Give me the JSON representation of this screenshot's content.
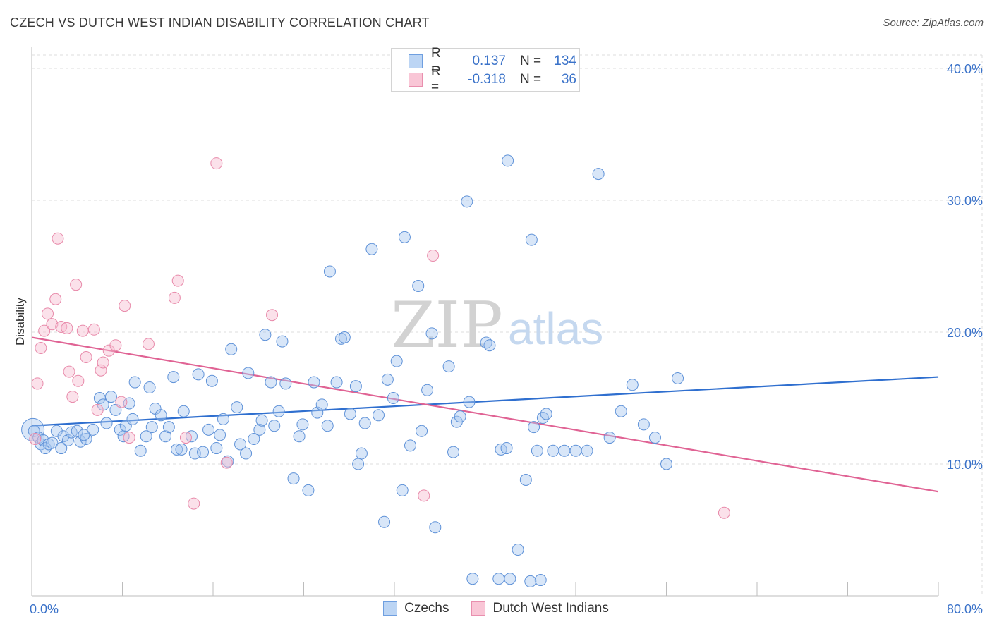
{
  "header": {
    "title": "CZECH VS DUTCH WEST INDIAN DISABILITY CORRELATION CHART",
    "source": "Source: ZipAtlas.com"
  },
  "watermark": {
    "part1": "ZIP",
    "part2": "atlas"
  },
  "colors": {
    "blue_fill": "#a9c8f0",
    "blue_stroke": "#5f92d8",
    "blue_line": "#2f6fcf",
    "pink_fill": "#f7bcd0",
    "pink_stroke": "#e88aaa",
    "pink_line": "#e06394",
    "grid": "#dcdcdc",
    "axis_text": "#3a72c9"
  },
  "legend_top": {
    "rows": [
      {
        "r_label": "R =",
        "r_value": "0.137",
        "n_label": "N =",
        "n_value": "134"
      },
      {
        "r_label": "R =",
        "r_value": "-0.318",
        "n_label": "N =",
        "n_value": "36"
      }
    ]
  },
  "legend_bottom": {
    "items": [
      "Czechs",
      "Dutch West Indians"
    ]
  },
  "chart_data": {
    "type": "scatter",
    "title": "CZECH VS DUTCH WEST INDIAN DISABILITY CORRELATION CHART",
    "xlabel": "",
    "ylabel": "Disability",
    "xlim": [
      0,
      80
    ],
    "ylim": [
      0,
      40
    ],
    "x_tick_labels": [
      "0.0%",
      "80.0%"
    ],
    "y_ticks": [
      10,
      20,
      30,
      40
    ],
    "y_tick_labels": [
      "10.0%",
      "20.0%",
      "30.0%",
      "40.0%"
    ],
    "legend_position": "top-center",
    "series": [
      {
        "name": "Czechs",
        "r": 0.137,
        "n": 134,
        "trend": {
          "x": [
            0,
            80
          ],
          "y": [
            12.9,
            16.6
          ]
        },
        "points": [
          [
            0.2,
            12.5
          ],
          [
            0.6,
            12.0
          ],
          [
            0.8,
            11.5
          ],
          [
            1.0,
            11.8
          ],
          [
            1.2,
            11.2
          ],
          [
            1.5,
            11.5
          ],
          [
            1.8,
            11.6
          ],
          [
            2.2,
            12.5
          ],
          [
            2.6,
            11.2
          ],
          [
            2.8,
            12.1
          ],
          [
            3.2,
            11.8
          ],
          [
            3.5,
            12.4
          ],
          [
            4.0,
            12.5
          ],
          [
            4.3,
            11.7
          ],
          [
            4.8,
            11.9
          ],
          [
            5.4,
            12.6
          ],
          [
            4.6,
            12.2
          ],
          [
            6.0,
            15.0
          ],
          [
            6.3,
            14.5
          ],
          [
            7.0,
            15.1
          ],
          [
            7.4,
            14.1
          ],
          [
            6.6,
            13.1
          ],
          [
            7.8,
            12.6
          ],
          [
            8.1,
            12.1
          ],
          [
            8.6,
            14.6
          ],
          [
            8.3,
            12.9
          ],
          [
            8.9,
            13.4
          ],
          [
            9.1,
            16.2
          ],
          [
            9.6,
            11.0
          ],
          [
            10.1,
            12.1
          ],
          [
            10.4,
            15.8
          ],
          [
            10.6,
            12.8
          ],
          [
            10.9,
            14.2
          ],
          [
            11.4,
            13.7
          ],
          [
            11.8,
            12.1
          ],
          [
            12.1,
            12.8
          ],
          [
            12.5,
            16.6
          ],
          [
            12.8,
            11.1
          ],
          [
            13.2,
            11.1
          ],
          [
            13.4,
            14.0
          ],
          [
            14.1,
            12.1
          ],
          [
            14.4,
            10.8
          ],
          [
            14.7,
            16.8
          ],
          [
            15.1,
            10.9
          ],
          [
            15.6,
            12.6
          ],
          [
            15.9,
            16.3
          ],
          [
            16.3,
            11.2
          ],
          [
            16.6,
            12.2
          ],
          [
            16.9,
            13.4
          ],
          [
            17.3,
            10.2
          ],
          [
            17.6,
            18.7
          ],
          [
            18.1,
            14.3
          ],
          [
            18.4,
            11.5
          ],
          [
            18.9,
            10.8
          ],
          [
            19.1,
            16.9
          ],
          [
            19.6,
            11.9
          ],
          [
            20.1,
            12.6
          ],
          [
            20.3,
            13.3
          ],
          [
            20.6,
            19.8
          ],
          [
            21.1,
            16.2
          ],
          [
            21.4,
            12.9
          ],
          [
            21.8,
            14.0
          ],
          [
            22.1,
            19.3
          ],
          [
            22.4,
            16.1
          ],
          [
            23.1,
            8.9
          ],
          [
            23.6,
            12.1
          ],
          [
            23.9,
            13.0
          ],
          [
            24.4,
            8.0
          ],
          [
            24.9,
            16.2
          ],
          [
            25.2,
            13.9
          ],
          [
            25.6,
            14.5
          ],
          [
            26.1,
            12.9
          ],
          [
            26.3,
            24.6
          ],
          [
            26.9,
            16.2
          ],
          [
            27.3,
            19.5
          ],
          [
            27.6,
            19.6
          ],
          [
            28.1,
            13.8
          ],
          [
            28.6,
            15.9
          ],
          [
            29.1,
            10.8
          ],
          [
            29.4,
            13.1
          ],
          [
            28.8,
            10.0
          ],
          [
            30.0,
            26.3
          ],
          [
            30.6,
            13.7
          ],
          [
            31.1,
            5.6
          ],
          [
            31.4,
            16.4
          ],
          [
            31.9,
            15.0
          ],
          [
            32.2,
            17.8
          ],
          [
            32.7,
            8.0
          ],
          [
            32.9,
            27.2
          ],
          [
            33.4,
            11.4
          ],
          [
            34.1,
            23.5
          ],
          [
            34.4,
            12.5
          ],
          [
            34.9,
            15.6
          ],
          [
            35.3,
            19.9
          ],
          [
            35.6,
            5.2
          ],
          [
            36.8,
            17.4
          ],
          [
            37.2,
            10.9
          ],
          [
            37.5,
            13.2
          ],
          [
            37.8,
            13.6
          ],
          [
            38.4,
            29.9
          ],
          [
            38.6,
            14.7
          ],
          [
            40.1,
            19.2
          ],
          [
            40.4,
            19.0
          ],
          [
            38.9,
            1.3
          ],
          [
            41.4,
            11.1
          ],
          [
            41.9,
            11.2
          ],
          [
            41.2,
            1.3
          ],
          [
            43.6,
            8.8
          ],
          [
            44.1,
            27.0
          ],
          [
            44.3,
            12.8
          ],
          [
            45.1,
            13.5
          ],
          [
            45.4,
            13.8
          ],
          [
            42.2,
            1.3
          ],
          [
            44.9,
            1.2
          ],
          [
            42.9,
            3.5
          ],
          [
            44.0,
            1.1
          ],
          [
            42.0,
            33.0
          ],
          [
            44.6,
            11.0
          ],
          [
            46.0,
            11.0
          ],
          [
            47.0,
            11.0
          ],
          [
            48.0,
            11.0
          ],
          [
            49.0,
            11.0
          ],
          [
            50.0,
            32.0
          ],
          [
            51.0,
            12.0
          ],
          [
            52.0,
            14.0
          ],
          [
            53.0,
            16.0
          ],
          [
            54.0,
            13.0
          ],
          [
            55.0,
            12.0
          ],
          [
            56.0,
            10.0
          ],
          [
            57.0,
            16.5
          ]
        ]
      },
      {
        "name": "Dutch West Indians",
        "r": -0.318,
        "n": 36,
        "trend": {
          "x": [
            0,
            80
          ],
          "y": [
            19.6,
            7.9
          ]
        },
        "points": [
          [
            0.5,
            16.1
          ],
          [
            0.8,
            18.8
          ],
          [
            1.1,
            20.1
          ],
          [
            1.4,
            21.4
          ],
          [
            1.8,
            20.6
          ],
          [
            2.1,
            22.5
          ],
          [
            2.3,
            27.1
          ],
          [
            2.6,
            20.4
          ],
          [
            3.1,
            20.3
          ],
          [
            3.3,
            17.0
          ],
          [
            3.6,
            15.1
          ],
          [
            3.9,
            23.6
          ],
          [
            4.1,
            16.3
          ],
          [
            4.5,
            20.1
          ],
          [
            4.8,
            18.1
          ],
          [
            5.5,
            20.2
          ],
          [
            5.8,
            14.1
          ],
          [
            6.1,
            17.1
          ],
          [
            6.3,
            17.7
          ],
          [
            6.8,
            18.6
          ],
          [
            7.4,
            19.0
          ],
          [
            7.9,
            14.7
          ],
          [
            8.2,
            22.0
          ],
          [
            8.6,
            12.0
          ],
          [
            10.3,
            19.1
          ],
          [
            12.6,
            22.6
          ],
          [
            12.9,
            23.9
          ],
          [
            13.6,
            12.0
          ],
          [
            14.3,
            7.0
          ],
          [
            16.3,
            32.8
          ],
          [
            17.2,
            10.1
          ],
          [
            21.2,
            21.3
          ],
          [
            35.4,
            25.8
          ],
          [
            34.6,
            7.6
          ],
          [
            61.1,
            6.3
          ],
          [
            0.3,
            11.9
          ]
        ]
      }
    ]
  }
}
